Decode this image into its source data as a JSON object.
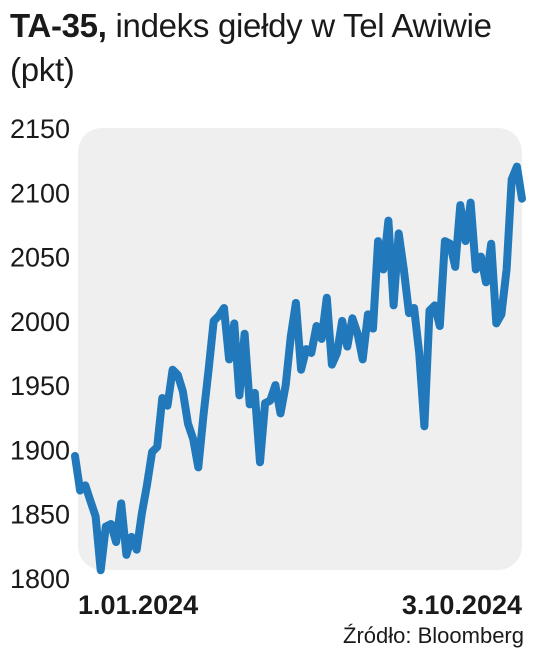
{
  "title_bold": "TA-35,",
  "title_rest": "indeks giełdy w Tel Awiwie",
  "title_unit": "(pkt)",
  "source": "Źródło: Bloomberg",
  "colors": {
    "line": "#2179bb",
    "plot_bg": "#efefef",
    "text": "#1a1a1a"
  },
  "chart_data": {
    "type": "line",
    "title": "TA-35, indeks giełdy w Tel Awiwie",
    "ylabel": "(pkt)",
    "ylim": [
      1800,
      2150
    ],
    "yticks": [
      2150,
      2100,
      2050,
      2000,
      1950,
      1900,
      1850,
      1800
    ],
    "xtick_labels": [
      "1.01.2024",
      "3.10.2024"
    ],
    "grid": false,
    "series": [
      {
        "values": [
          1895,
          1868,
          1872,
          1860,
          1848,
          1806,
          1840,
          1842,
          1828,
          1858,
          1818,
          1832,
          1822,
          1850,
          1872,
          1898,
          1902,
          1940,
          1934,
          1962,
          1958,
          1945,
          1920,
          1908,
          1886,
          1926,
          1962,
          2000,
          2004,
          2010,
          1970,
          1998,
          1942,
          1990,
          1935,
          1944,
          1890,
          1936,
          1938,
          1950,
          1928,
          1950,
          1988,
          2014,
          1962,
          1978,
          1975,
          1996,
          1986,
          2018,
          1966,
          1975,
          2000,
          1980,
          2002,
          1990,
          1970,
          2005,
          1994,
          2062,
          2040,
          2078,
          2012,
          2068,
          2040,
          2006,
          2010,
          1975,
          1918,
          2008,
          2012,
          1996,
          2062,
          2060,
          2042,
          2090,
          2062,
          2092,
          2040,
          2050,
          2030,
          2060,
          1998,
          2005,
          2040,
          2110,
          2120,
          2095
        ]
      }
    ]
  }
}
